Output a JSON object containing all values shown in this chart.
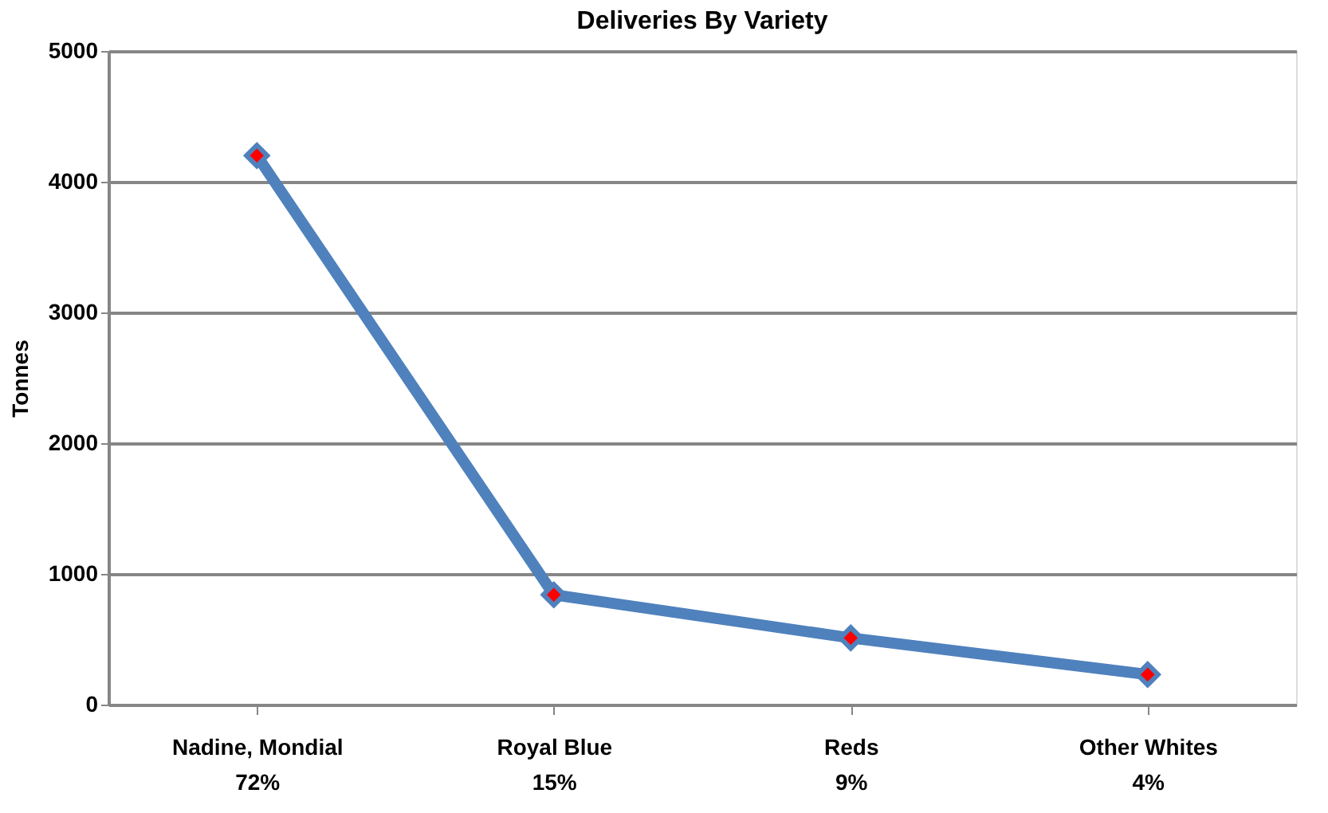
{
  "chart_data": {
    "type": "line",
    "title": "Deliveries By Variety",
    "ylabel": "Tonnes",
    "categories": [
      "Nadine, Mondial\n72%",
      "Royal Blue\n15%",
      "Reds\n9%",
      "Other Whites\n4%"
    ],
    "series": [
      {
        "color": "#4f81bd",
        "values": [
          4200,
          840,
          510,
          230
        ]
      }
    ],
    "ylim": [
      0,
      5000
    ],
    "yticks": [
      0,
      1000,
      2000,
      3000,
      4000,
      5000
    ],
    "grid": "y",
    "marker": "diamond",
    "line_style": "solid"
  }
}
